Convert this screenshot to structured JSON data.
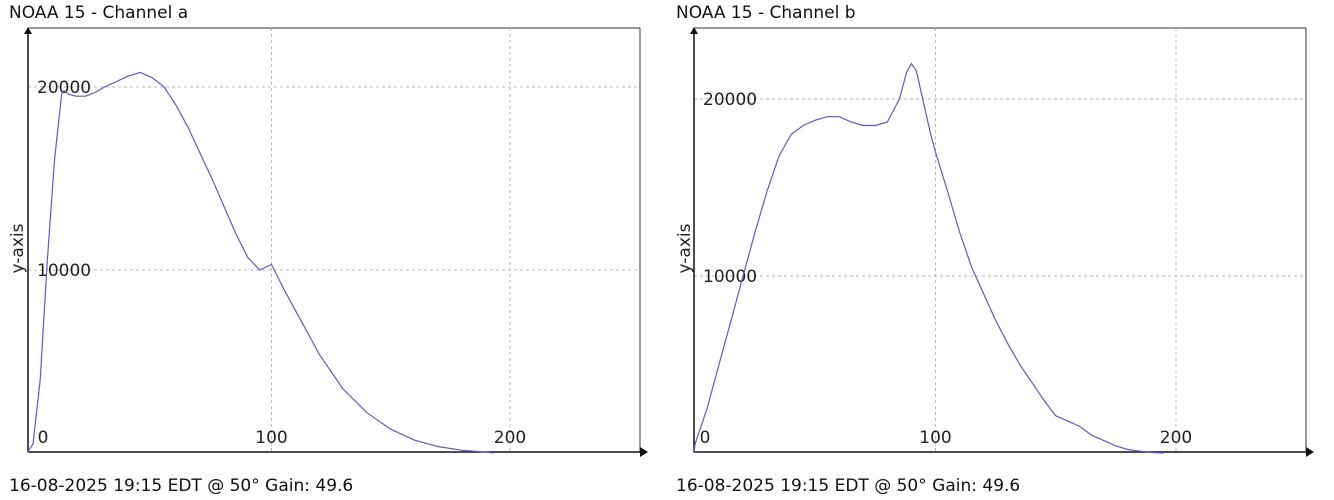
{
  "chart_data": [
    {
      "type": "line",
      "title": "NOAA 15 - Channel a",
      "footer": "16-08-2025 19:15 EDT @ 50° Gain: 49.6",
      "xlabel": "",
      "ylabel": "y-axis",
      "xlim": [
        0,
        250
      ],
      "ylim": [
        -1000,
        23000
      ],
      "xticks": [
        0,
        100,
        200
      ],
      "yticks": [
        10000,
        20000
      ],
      "grid": true,
      "line_color": "#5b5bc8",
      "series": [
        {
          "x": [
            -5,
            -2,
            0,
            3,
            6,
            9,
            12,
            13,
            15,
            18,
            22,
            26,
            30,
            35,
            40,
            45,
            50,
            55,
            60,
            65,
            70,
            75,
            80,
            85,
            90,
            95,
            100,
            105,
            110,
            115,
            120,
            130,
            140,
            150,
            160,
            170,
            180,
            190,
            193
          ],
          "y": [
            0,
            100,
            500,
            4000,
            10500,
            16000,
            19600,
            19800,
            19600,
            19500,
            19500,
            19700,
            20000,
            20300,
            20600,
            20800,
            20500,
            20000,
            19000,
            17800,
            16400,
            15000,
            13500,
            12000,
            10700,
            10000,
            10300,
            9000,
            7800,
            6600,
            5400,
            3500,
            2200,
            1300,
            700,
            350,
            150,
            50,
            0
          ]
        }
      ]
    },
    {
      "type": "line",
      "title": "NOAA 15 - Channel b",
      "footer": "16-08-2025 19:15 EDT @ 50° Gain: 49.6",
      "xlabel": "",
      "ylabel": "y-axis",
      "xlim": [
        0,
        250
      ],
      "ylim": [
        -1000,
        23000
      ],
      "xticks": [
        0,
        100,
        200
      ],
      "yticks": [
        10000,
        20000
      ],
      "grid": true,
      "line_color": "#5b5bc8",
      "series": [
        {
          "x": [
            -5,
            0,
            5,
            10,
            15,
            20,
            25,
            30,
            35,
            40,
            45,
            50,
            55,
            60,
            65,
            70,
            75,
            80,
            85,
            88,
            90,
            92,
            95,
            98,
            100,
            105,
            110,
            115,
            120,
            125,
            130,
            135,
            140,
            145,
            150,
            155,
            160,
            165,
            170,
            175,
            180,
            185,
            190,
            195
          ],
          "y": [
            0,
            500,
            2500,
            5000,
            7500,
            10000,
            12500,
            14800,
            16800,
            18000,
            18500,
            18800,
            19000,
            19000,
            18700,
            18500,
            18500,
            18700,
            20000,
            21500,
            22000,
            21600,
            19800,
            18000,
            17000,
            14800,
            12500,
            10500,
            9000,
            7500,
            6200,
            5000,
            4000,
            3000,
            2100,
            1800,
            1500,
            1000,
            700,
            400,
            200,
            100,
            30,
            0
          ]
        }
      ]
    }
  ]
}
